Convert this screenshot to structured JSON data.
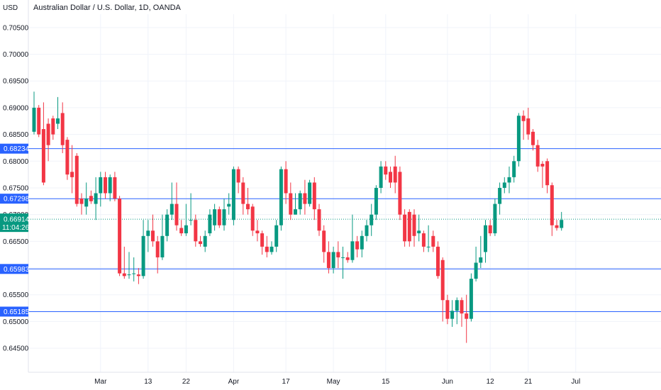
{
  "header": {
    "title": "Australian Dollar / U.S. Dollar, 1D, OANDA"
  },
  "chart_data": {
    "type": "candlestick",
    "title": "Australian Dollar / U.S. Dollar, 1D, OANDA",
    "y_unit": "USD",
    "ylim": [
      0.6405,
      0.7075
    ],
    "y_ticks": [
      "0.70500",
      "0.70000",
      "0.69500",
      "0.69000",
      "0.68500",
      "0.68000",
      "0.67500",
      "0.67000",
      "0.66500",
      "0.66000",
      "0.65500",
      "0.65000",
      "0.64500"
    ],
    "x_ticks": [
      "Mar",
      "13",
      "22",
      "Apr",
      "17",
      "May",
      "15",
      "Jun",
      "12",
      "21",
      "Jul"
    ],
    "x_tick_index": [
      14,
      24,
      32,
      42,
      53,
      63,
      74,
      87,
      96,
      104,
      114
    ],
    "horizontal_lines": [
      {
        "value": "0.68234",
        "color": "#2962ff"
      },
      {
        "value": "0.67298",
        "color": "#2962ff"
      },
      {
        "value": "0.65983",
        "color": "#2962ff"
      },
      {
        "value": "0.65185",
        "color": "#2962ff"
      }
    ],
    "last_price": {
      "value": "0.66914",
      "countdown": "11:04:26",
      "color": "#089981"
    },
    "up_color": "#089981",
    "down_color": "#f23645",
    "candles": [
      [
        0.6855,
        0.69,
        0.693,
        0.685
      ],
      [
        0.69,
        0.685,
        0.6905,
        0.6845
      ],
      [
        0.686,
        0.676,
        0.691,
        0.6755
      ],
      [
        0.687,
        0.683,
        0.688,
        0.68
      ],
      [
        0.688,
        0.685,
        0.6885,
        0.684
      ],
      [
        0.687,
        0.688,
        0.692,
        0.686
      ],
      [
        0.689,
        0.683,
        0.691,
        0.6815
      ],
      [
        0.684,
        0.6775,
        0.6845,
        0.6765
      ],
      [
        0.678,
        0.677,
        0.683,
        0.674
      ],
      [
        0.681,
        0.672,
        0.6815,
        0.6715
      ],
      [
        0.673,
        0.672,
        0.674,
        0.67
      ],
      [
        0.6715,
        0.673,
        0.676,
        0.67
      ],
      [
        0.6735,
        0.6725,
        0.6745,
        0.672
      ],
      [
        0.672,
        0.674,
        0.677,
        0.669
      ],
      [
        0.674,
        0.677,
        0.678,
        0.6715
      ],
      [
        0.677,
        0.674,
        0.678,
        0.673
      ],
      [
        0.674,
        0.677,
        0.6775,
        0.6725
      ],
      [
        0.677,
        0.673,
        0.678,
        0.6725
      ],
      [
        0.673,
        0.659,
        0.6735,
        0.6585
      ],
      [
        0.659,
        0.6585,
        0.664,
        0.658
      ],
      [
        0.6588,
        0.6588,
        0.663,
        0.658
      ],
      [
        0.659,
        0.659,
        0.662,
        0.6575
      ],
      [
        0.6588,
        0.6585,
        0.66,
        0.657
      ],
      [
        0.6585,
        0.666,
        0.669,
        0.658
      ],
      [
        0.666,
        0.667,
        0.669,
        0.663
      ],
      [
        0.667,
        0.665,
        0.67,
        0.664
      ],
      [
        0.665,
        0.662,
        0.666,
        0.659
      ],
      [
        0.662,
        0.666,
        0.67,
        0.6615
      ],
      [
        0.666,
        0.67,
        0.671,
        0.665
      ],
      [
        0.67,
        0.672,
        0.676,
        0.669
      ],
      [
        0.672,
        0.668,
        0.676,
        0.667
      ],
      [
        0.6675,
        0.6665,
        0.669,
        0.666
      ],
      [
        0.6665,
        0.668,
        0.672,
        0.666
      ],
      [
        0.669,
        0.669,
        0.674,
        0.668
      ],
      [
        0.669,
        0.665,
        0.67,
        0.664
      ],
      [
        0.665,
        0.6645,
        0.666,
        0.664
      ],
      [
        0.664,
        0.666,
        0.667,
        0.663
      ],
      [
        0.6665,
        0.67,
        0.671,
        0.666
      ],
      [
        0.668,
        0.671,
        0.672,
        0.667
      ],
      [
        0.671,
        0.668,
        0.6715,
        0.6675
      ],
      [
        0.668,
        0.671,
        0.673,
        0.667
      ],
      [
        0.6715,
        0.672,
        0.674,
        0.67
      ],
      [
        0.669,
        0.6785,
        0.679,
        0.668
      ],
      [
        0.6785,
        0.676,
        0.679,
        0.674
      ],
      [
        0.676,
        0.672,
        0.677,
        0.67
      ],
      [
        0.672,
        0.671,
        0.675,
        0.67
      ],
      [
        0.6715,
        0.667,
        0.672,
        0.666
      ],
      [
        0.667,
        0.6665,
        0.669,
        0.665
      ],
      [
        0.6665,
        0.664,
        0.667,
        0.6625
      ],
      [
        0.664,
        0.663,
        0.666,
        0.662
      ],
      [
        0.663,
        0.664,
        0.665,
        0.6625
      ],
      [
        0.664,
        0.668,
        0.669,
        0.663
      ],
      [
        0.668,
        0.6785,
        0.679,
        0.667
      ],
      [
        0.6785,
        0.674,
        0.68,
        0.672
      ],
      [
        0.674,
        0.67,
        0.676,
        0.669
      ],
      [
        0.67,
        0.671,
        0.674,
        0.67
      ],
      [
        0.671,
        0.674,
        0.6745,
        0.67
      ],
      [
        0.674,
        0.672,
        0.6765,
        0.67
      ],
      [
        0.672,
        0.676,
        0.6765,
        0.6715
      ],
      [
        0.676,
        0.671,
        0.677,
        0.669
      ],
      [
        0.671,
        0.667,
        0.672,
        0.666
      ],
      [
        0.667,
        0.663,
        0.668,
        0.661
      ],
      [
        0.663,
        0.66,
        0.665,
        0.659
      ],
      [
        0.66,
        0.663,
        0.664,
        0.659
      ],
      [
        0.663,
        0.662,
        0.665,
        0.66
      ],
      [
        0.662,
        0.662,
        0.664,
        0.658
      ],
      [
        0.662,
        0.6615,
        0.663,
        0.661
      ],
      [
        0.6615,
        0.665,
        0.67,
        0.661
      ],
      [
        0.665,
        0.6635,
        0.666,
        0.662
      ],
      [
        0.6635,
        0.666,
        0.667,
        0.662
      ],
      [
        0.666,
        0.668,
        0.669,
        0.665
      ],
      [
        0.668,
        0.67,
        0.672,
        0.666
      ],
      [
        0.67,
        0.675,
        0.6755,
        0.669
      ],
      [
        0.675,
        0.679,
        0.68,
        0.674
      ],
      [
        0.679,
        0.6775,
        0.68,
        0.6765
      ],
      [
        0.678,
        0.676,
        0.679,
        0.675
      ],
      [
        0.679,
        0.676,
        0.681,
        0.674
      ],
      [
        0.678,
        0.67,
        0.679,
        0.669
      ],
      [
        0.67,
        0.665,
        0.671,
        0.664
      ],
      [
        0.6705,
        0.665,
        0.671,
        0.664
      ],
      [
        0.67,
        0.666,
        0.671,
        0.664
      ],
      [
        0.6665,
        0.667,
        0.67,
        0.665
      ],
      [
        0.6665,
        0.664,
        0.667,
        0.663
      ],
      [
        0.664,
        0.664,
        0.668,
        0.663
      ],
      [
        0.666,
        0.664,
        0.667,
        0.663
      ],
      [
        0.664,
        0.6585,
        0.665,
        0.658
      ],
      [
        0.6615,
        0.654,
        0.662,
        0.65
      ],
      [
        0.654,
        0.6505,
        0.655,
        0.6495
      ],
      [
        0.6505,
        0.652,
        0.654,
        0.649
      ],
      [
        0.652,
        0.654,
        0.6545,
        0.6495
      ],
      [
        0.654,
        0.6515,
        0.6545,
        0.649
      ],
      [
        0.6515,
        0.6505,
        0.655,
        0.646
      ],
      [
        0.6505,
        0.658,
        0.659,
        0.65
      ],
      [
        0.658,
        0.661,
        0.664,
        0.6575
      ],
      [
        0.661,
        0.662,
        0.666,
        0.66
      ],
      [
        0.663,
        0.668,
        0.669,
        0.661
      ],
      [
        0.668,
        0.6665,
        0.669,
        0.666
      ],
      [
        0.6665,
        0.672,
        0.673,
        0.666
      ],
      [
        0.672,
        0.675,
        0.676,
        0.67
      ],
      [
        0.675,
        0.676,
        0.677,
        0.674
      ],
      [
        0.676,
        0.677,
        0.679,
        0.674
      ],
      [
        0.677,
        0.68,
        0.681,
        0.676
      ],
      [
        0.68,
        0.6885,
        0.689,
        0.679
      ],
      [
        0.6885,
        0.6875,
        0.6895,
        0.684
      ],
      [
        0.688,
        0.685,
        0.69,
        0.684
      ],
      [
        0.6855,
        0.683,
        0.686,
        0.682
      ],
      [
        0.683,
        0.679,
        0.684,
        0.678
      ],
      [
        0.6795,
        0.679,
        0.68,
        0.675
      ],
      [
        0.68,
        0.6755,
        0.6805,
        0.674
      ],
      [
        0.6755,
        0.668,
        0.676,
        0.666
      ],
      [
        0.668,
        0.6675,
        0.669,
        0.667
      ],
      [
        0.6675,
        0.669,
        0.6705,
        0.667
      ]
    ]
  }
}
